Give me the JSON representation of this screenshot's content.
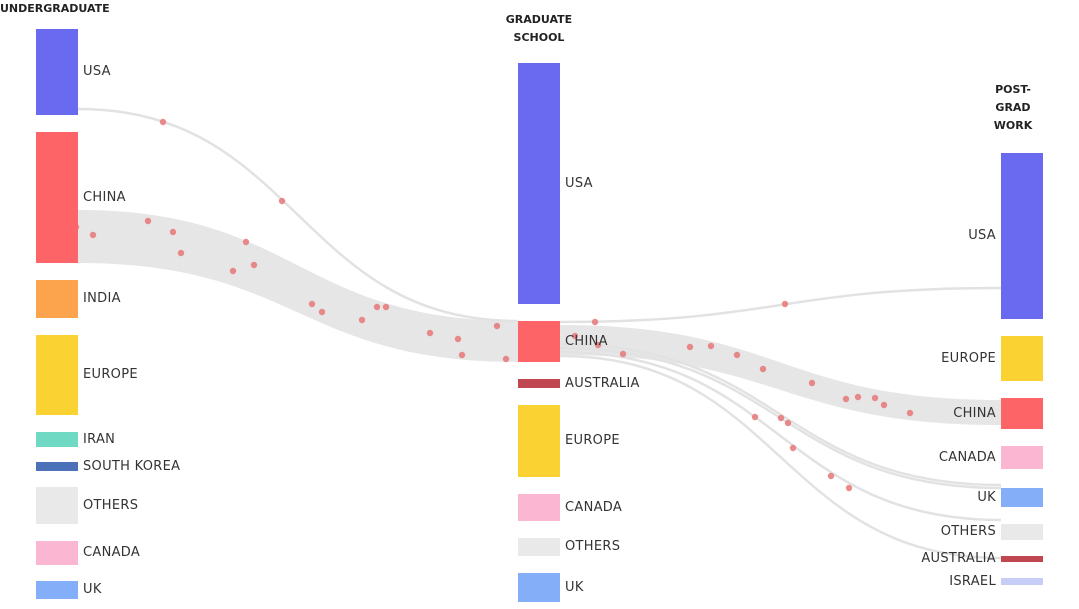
{
  "columns": [
    {
      "title": "UNDERGRADUATE",
      "nodes": [
        {
          "label": "USA",
          "color": "#6a6af0"
        },
        {
          "label": "CHINA",
          "color": "#fd6468"
        },
        {
          "label": "INDIA",
          "color": "#fba34d"
        },
        {
          "label": "EUROPE",
          "color": "#fad232"
        },
        {
          "label": "IRAN",
          "color": "#6fd9c4"
        },
        {
          "label": "SOUTH KOREA",
          "color": "#4b72b8"
        },
        {
          "label": "OTHERS",
          "color": "#e9e9e9"
        },
        {
          "label": "CANADA",
          "color": "#fbb6d2"
        },
        {
          "label": "UK",
          "color": "#84aef8"
        }
      ]
    },
    {
      "title": "GRADUATE SCHOOL",
      "nodes": [
        {
          "label": "USA",
          "color": "#6a6af0"
        },
        {
          "label": "CHINA",
          "color": "#fd6468"
        },
        {
          "label": "AUSTRALIA",
          "color": "#c0474f"
        },
        {
          "label": "EUROPE",
          "color": "#fad232"
        },
        {
          "label": "CANADA",
          "color": "#fbb6d2"
        },
        {
          "label": "OTHERS",
          "color": "#e9e9e9"
        },
        {
          "label": "UK",
          "color": "#84aef8"
        }
      ]
    },
    {
      "title": "POST-GRAD WORK",
      "nodes": [
        {
          "label": "USA",
          "color": "#6a6af0"
        },
        {
          "label": "EUROPE",
          "color": "#fad232"
        },
        {
          "label": "CHINA",
          "color": "#fd6468"
        },
        {
          "label": "CANADA",
          "color": "#fbb6d2"
        },
        {
          "label": "UK",
          "color": "#84aef8"
        },
        {
          "label": "OTHERS",
          "color": "#e9e9e9"
        },
        {
          "label": "AUSTRALIA",
          "color": "#c0474f"
        },
        {
          "label": "ISRAEL",
          "color": "#c7cdf6"
        }
      ]
    }
  ]
}
